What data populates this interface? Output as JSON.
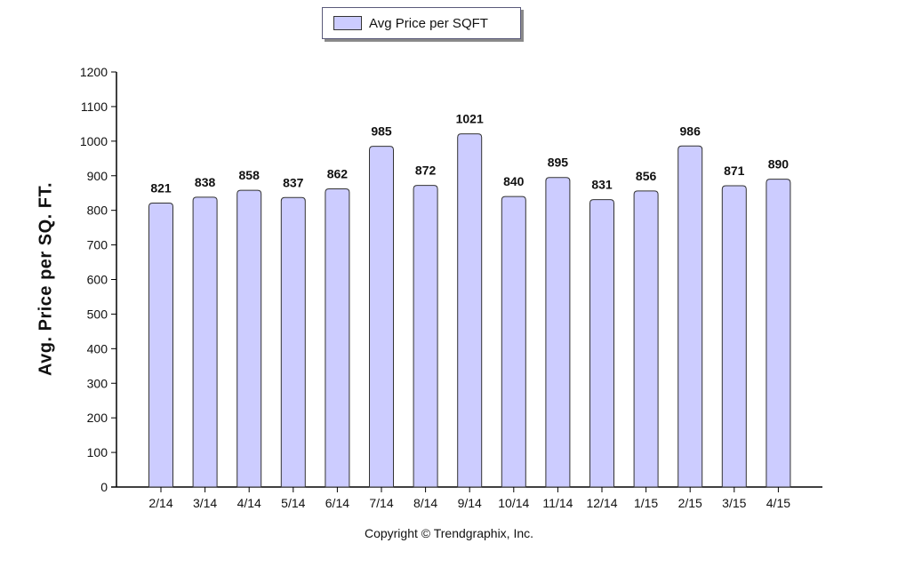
{
  "chart_data": {
    "type": "bar",
    "categories": [
      "2/14",
      "3/14",
      "4/14",
      "5/14",
      "6/14",
      "7/14",
      "8/14",
      "9/14",
      "10/14",
      "11/14",
      "12/14",
      "1/15",
      "2/15",
      "3/15",
      "4/15"
    ],
    "series": [
      {
        "name": "Avg Price per SQFT",
        "values": [
          821,
          838,
          858,
          837,
          862,
          985,
          872,
          1021,
          840,
          895,
          831,
          856,
          986,
          871,
          890
        ]
      }
    ],
    "ylabel": "Avg. Price per SQ. FT.",
    "xlabel": "",
    "ylim": [
      0,
      1200
    ],
    "yticks": [
      0,
      100,
      200,
      300,
      400,
      500,
      600,
      700,
      800,
      900,
      1000,
      1100,
      1200
    ],
    "grid": false,
    "legend_position": "top-center",
    "data_labels": true,
    "colors": {
      "bar_fill": "#ccccff",
      "bar_stroke": "#333333"
    }
  },
  "footer": {
    "copyright": "Copyright © Trendgraphix, Inc."
  }
}
